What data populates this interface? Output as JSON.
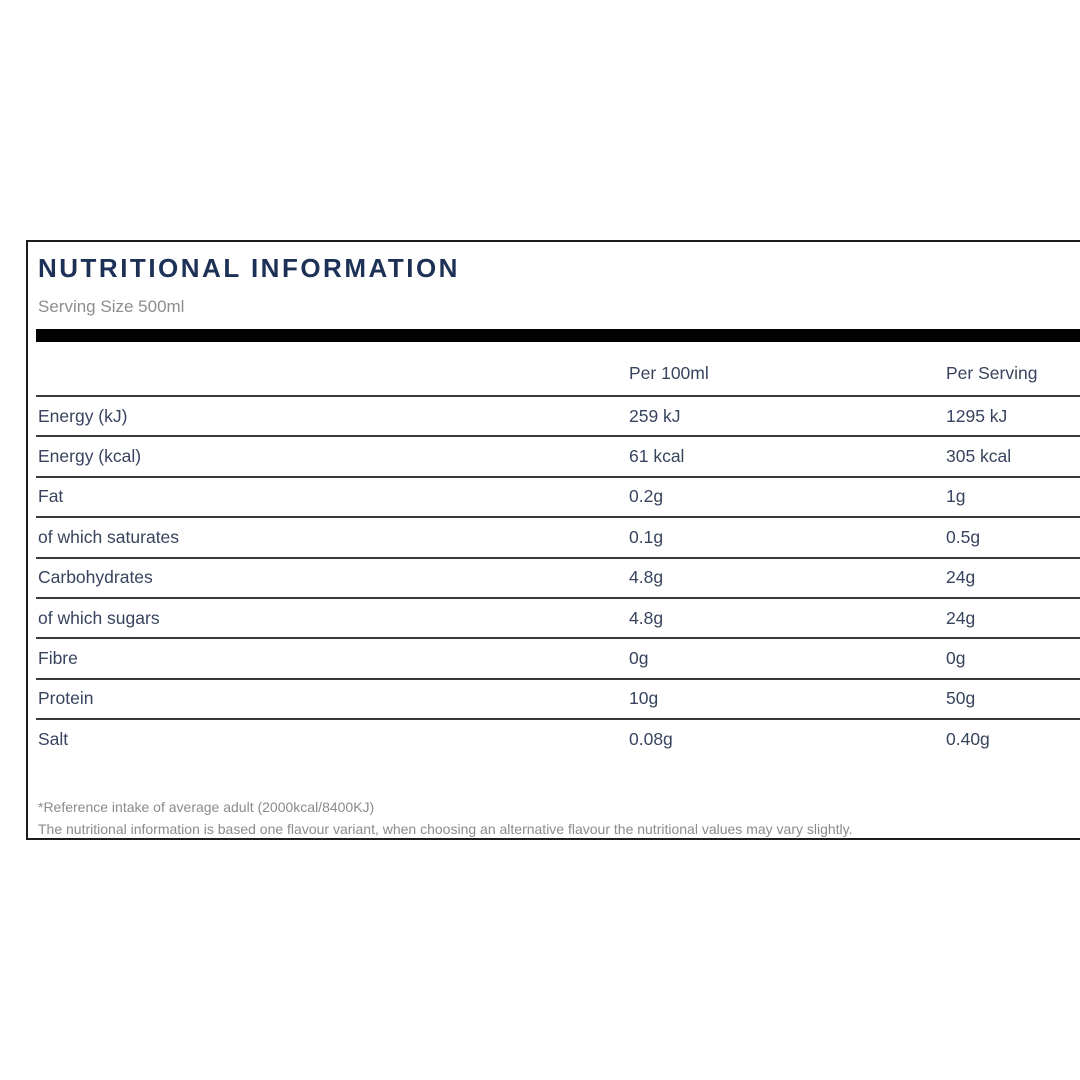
{
  "label": {
    "title": "NUTRITIONAL INFORMATION",
    "serving_size": "Serving Size 500ml",
    "columns": {
      "nutrient": "",
      "per_100ml": "Per 100ml",
      "per_serving": "Per Serving"
    },
    "rows": [
      {
        "label": "Energy (kJ)",
        "per_100ml": "259 kJ",
        "per_serving": "1295 kJ"
      },
      {
        "label": "Energy (kcal)",
        "per_100ml": "61 kcal",
        "per_serving": "305 kcal"
      },
      {
        "label": "Fat",
        "per_100ml": "0.2g",
        "per_serving": "1g"
      },
      {
        "label": "of which saturates",
        "per_100ml": "0.1g",
        "per_serving": "0.5g"
      },
      {
        "label": "Carbohydrates",
        "per_100ml": "4.8g",
        "per_serving": "24g"
      },
      {
        "label": "of which sugars",
        "per_100ml": "4.8g",
        "per_serving": "24g"
      },
      {
        "label": "Fibre",
        "per_100ml": "0g",
        "per_serving": "0g"
      },
      {
        "label": "Protein",
        "per_100ml": "10g",
        "per_serving": "50g"
      },
      {
        "label": "Salt",
        "per_100ml": "0.08g",
        "per_serving": "0.40g"
      }
    ],
    "footnotes": [
      "*Reference intake of average adult (2000kcal/8400KJ)",
      "The nutritional information is based one flavour variant, when choosing an alternative flavour the nutritional values may vary slightly."
    ],
    "colors": {
      "title_navy": "#1d3156",
      "body_navy": "#38445e",
      "muted_gray": "#8d8d8d",
      "bar_black": "#020202",
      "divider_gray": "#3a3a3a",
      "panel_border": "#1c1c1c"
    }
  }
}
